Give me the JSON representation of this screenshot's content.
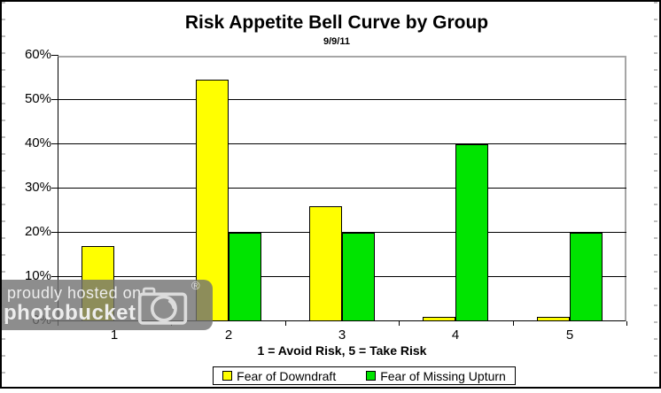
{
  "chart_data": {
    "type": "bar",
    "title": "Risk Appetite Bell Curve by Group",
    "subtitle": "9/9/11",
    "xlabel": "1 = Avoid Risk, 5 = Take Risk",
    "categories": [
      "1",
      "2",
      "3",
      "4",
      "5"
    ],
    "series": [
      {
        "name": "Fear of Downdraft",
        "color": "#FFFF00",
        "values": [
          17,
          54.5,
          26,
          1,
          1
        ]
      },
      {
        "name": "Fear of Missing Upturn",
        "color": "#00E400",
        "values": [
          0,
          20,
          20,
          40,
          20
        ]
      }
    ],
    "ylim": [
      0,
      60
    ],
    "ytick_step": 10,
    "ytick_suffix": "%",
    "ytick_labels": [
      "0%",
      "10%",
      "20%",
      "30%",
      "40%",
      "50%",
      "60%"
    ],
    "grid": true,
    "legend_position": "bottom"
  },
  "watermark": {
    "line1": "proudly hosted on",
    "line2": "photobucket",
    "registered_mark": "®"
  }
}
